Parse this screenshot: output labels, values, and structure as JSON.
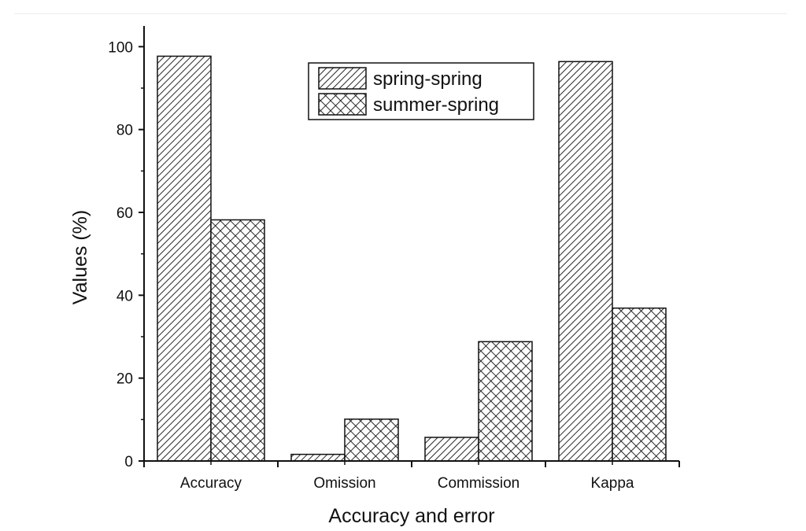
{
  "chart_data": {
    "type": "bar",
    "categories": [
      "Accuracy",
      "Omission",
      "Commission",
      "Kappa"
    ],
    "series": [
      {
        "name": "spring-spring",
        "pattern": "diagonal-hatch",
        "values": [
          97.7,
          1.6,
          5.7,
          96.4
        ]
      },
      {
        "name": "summer-spring",
        "pattern": "crosshatch",
        "values": [
          58.2,
          10.1,
          28.8,
          36.9
        ]
      }
    ],
    "title": "",
    "xlabel": "Accuracy and error",
    "ylabel": "Values (%)",
    "ylim": [
      0,
      105
    ],
    "yticks": [
      0,
      20,
      40,
      60,
      80,
      100
    ],
    "grid": false,
    "legend_position": "top-center",
    "colors": {
      "bar_fill": "#ffffff",
      "stroke": "#111111",
      "axis": "#111111"
    }
  }
}
